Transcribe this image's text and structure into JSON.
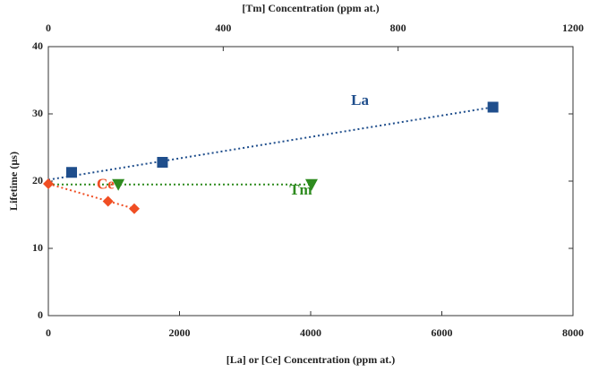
{
  "chart_data": {
    "type": "scatter",
    "xlabel": "[La] or [Ce] Concentration (ppm at.)",
    "x2label": "[Tm] Concentration (ppm at.)",
    "ylabel": "Lifetime (µs)",
    "xlim": [
      0,
      8000
    ],
    "xticks": [
      0,
      2000,
      4000,
      6000,
      8000
    ],
    "x2lim": [
      0,
      1200
    ],
    "x2ticks": [
      0,
      400,
      800,
      1200
    ],
    "ylim": [
      0,
      40
    ],
    "yticks": [
      0,
      10,
      20,
      30,
      40
    ],
    "series": [
      {
        "name": "La",
        "color": "#1f4e8c",
        "marker": "square",
        "axis": "x",
        "x": [
          355,
          1740,
          6780
        ],
        "values": [
          21.3,
          22.8,
          31.0
        ],
        "fit_x": [
          0,
          6780
        ],
        "fit_y": [
          20.2,
          31.0
        ]
      },
      {
        "name": "Tm",
        "color": "#2e8b1f",
        "marker": "triangle-down",
        "axis": "x2",
        "x": [
          160,
          602
        ],
        "values": [
          19.5,
          19.5
        ],
        "fit_x": [
          0,
          602
        ],
        "fit_y": [
          19.5,
          19.5
        ]
      },
      {
        "name": "Ce",
        "color": "#f04e23",
        "marker": "diamond",
        "axis": "x",
        "x": [
          0,
          910,
          1310
        ],
        "values": [
          19.6,
          17.0,
          15.9
        ],
        "fit_x": [
          0,
          1310
        ],
        "fit_y": [
          19.6,
          15.9
        ]
      }
    ]
  }
}
